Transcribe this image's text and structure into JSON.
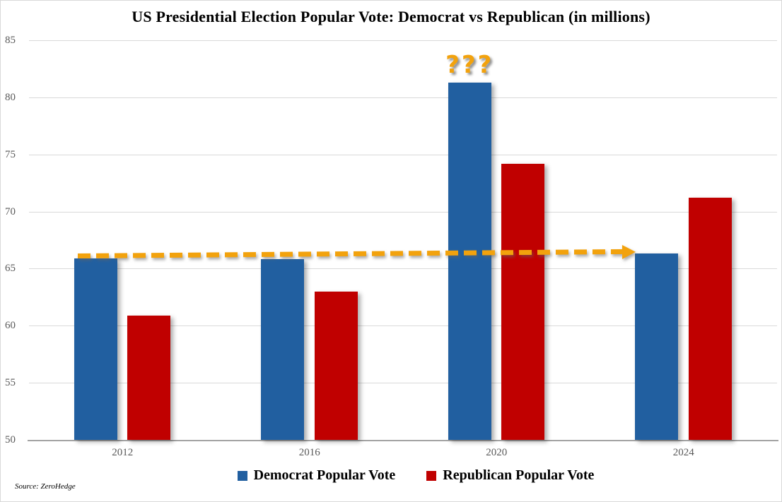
{
  "title": "US Presidential Election Popular Vote: Democrat vs Republican (in millions)",
  "source_note": "Source: ZeroHedge",
  "annotation_question_marks": "???",
  "colors": {
    "democrat_blue": "#215FA0",
    "republican_red": "#C00000",
    "arrow_orange": "#F2A20D",
    "gridline_gray": "#D9D9D9",
    "axis_line_gray": "#A3A3A3",
    "tick_label_gray": "#595959"
  },
  "chart_data": {
    "type": "bar",
    "title": "US Presidential Election Popular Vote: Democrat vs Republican (in millions)",
    "categories": [
      "2012",
      "2016",
      "2020",
      "2024"
    ],
    "series": [
      {
        "name": "Democrat Popular Vote",
        "color": "#215FA0",
        "values": [
          65.9,
          65.8,
          81.3,
          66.3
        ]
      },
      {
        "name": "Republican Popular Vote",
        "color": "#C00000",
        "values": [
          60.9,
          63.0,
          74.2,
          71.2
        ]
      }
    ],
    "ylim": [
      50,
      85
    ],
    "yticks": [
      50,
      55,
      60,
      65,
      70,
      75,
      80,
      85
    ],
    "grid": true,
    "legend_position": "bottom",
    "annotations": [
      {
        "type": "text",
        "text": "???",
        "color": "#F2A20D",
        "position": "above 2020 Democrat bar"
      },
      {
        "type": "dashed_arrow",
        "color": "#F2A20D",
        "value": 66,
        "from_category": "2012",
        "to_category": "2024",
        "note": "horizontal dashed arrow at ~66 million pointing toward the 2024 Democrat bar"
      }
    ]
  },
  "legend": {
    "items": [
      {
        "label": "Democrat Popular Vote",
        "color": "#215FA0"
      },
      {
        "label": "Republican Popular Vote",
        "color": "#C00000"
      }
    ]
  }
}
